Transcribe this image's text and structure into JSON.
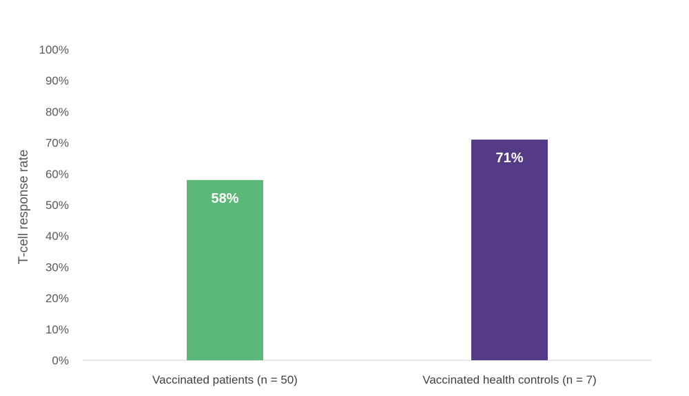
{
  "chart_data": {
    "type": "bar",
    "categories": [
      "Vaccinated patients (n = 50)",
      "Vaccinated health controls (n = 7)"
    ],
    "values": [
      58,
      71
    ],
    "value_labels": [
      "58%",
      "71%"
    ],
    "bar_colors": [
      "#5cb878",
      "#553a85"
    ],
    "data_label_color": "#ffffff",
    "title": "",
    "xlabel": "",
    "ylabel": "T-cell response rate",
    "ylim": [
      0,
      100
    ],
    "yticks": [
      0,
      10,
      20,
      30,
      40,
      50,
      60,
      70,
      80,
      90,
      100
    ],
    "ytick_labels": [
      "0%",
      "10%",
      "20%",
      "30%",
      "40%",
      "50%",
      "60%",
      "70%",
      "80%",
      "90%",
      "100%"
    ],
    "grid": false,
    "legend": "none"
  }
}
